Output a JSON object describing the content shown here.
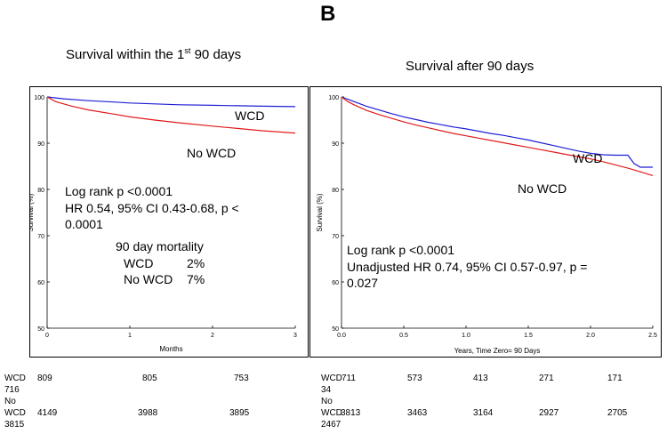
{
  "panel_letter": "B",
  "chart_data": [
    {
      "type": "line",
      "title": "Survival within the 1st 90 days",
      "title_main": "Survival within the 1",
      "title_sup": "st",
      "title_rest": " 90 days",
      "xlabel": "Months",
      "ylabel": "Survival (%)",
      "xlim": [
        0,
        3
      ],
      "ylim": [
        50,
        100
      ],
      "xticks": [
        0,
        1,
        2,
        3
      ],
      "yticks": [
        50,
        60,
        70,
        80,
        90,
        100
      ],
      "xtick_labels": [
        "0",
        "1",
        "2",
        "3"
      ],
      "ytick_labels": [
        "50",
        "60",
        "70",
        "80",
        "90",
        "100"
      ],
      "series": [
        {
          "name": "WCD",
          "color": "#1f1fd6",
          "x": [
            0,
            0.2,
            0.5,
            0.8,
            1.0,
            1.3,
            1.6,
            2.0,
            2.3,
            2.6,
            3.0
          ],
          "y": [
            100,
            99.6,
            99.2,
            98.9,
            98.7,
            98.5,
            98.3,
            98.2,
            98.1,
            98.0,
            97.9
          ]
        },
        {
          "name": "No WCD",
          "color": "#e01b1b",
          "x": [
            0,
            0.1,
            0.3,
            0.5,
            0.8,
            1.0,
            1.3,
            1.6,
            2.0,
            2.3,
            2.6,
            3.0
          ],
          "y": [
            100,
            99.0,
            98.0,
            97.2,
            96.3,
            95.7,
            95.0,
            94.4,
            93.7,
            93.2,
            92.7,
            92.2
          ]
        }
      ],
      "annotations": {
        "wcd_label": "WCD",
        "nowcd_label": "No WCD",
        "logrank": "Log rank p <0.0001",
        "hr_line1": "HR 0.54, 95% CI 0.43-0.68, p <",
        "hr_line2": "0.0001",
        "mortality_title": "90 day mortality",
        "mort_wcd_label": "WCD",
        "mort_wcd_value": "2%",
        "mort_nowcd_label": "No WCD",
        "mort_nowcd_value": "7%"
      },
      "risk_table": {
        "row1_label_a": "WCD",
        "row1_label_b": "716",
        "row1_values": [
          "809",
          "805",
          "753"
        ],
        "row2_label_a": "No",
        "row2_label_b": "WCD",
        "row2_label_c": "3815",
        "row2_values": [
          "4149",
          "3988",
          "3895"
        ]
      }
    },
    {
      "type": "line",
      "title": "Survival after 90 days",
      "xlabel": "Years, Time Zero= 90 Days",
      "ylabel": "Survival (%)",
      "xlim": [
        0,
        2.5
      ],
      "ylim": [
        50,
        100
      ],
      "xticks": [
        0,
        0.5,
        1.0,
        1.5,
        2.0,
        2.5
      ],
      "yticks": [
        50,
        60,
        70,
        80,
        90,
        100
      ],
      "xtick_labels": [
        "0.0",
        "0.5",
        "1.0",
        "1.5",
        "2.0",
        "2.5"
      ],
      "ytick_labels": [
        "50",
        "60",
        "70",
        "80",
        "90",
        "100"
      ],
      "series": [
        {
          "name": "WCD",
          "color": "#1f1fd6",
          "x": [
            0,
            0.05,
            0.1,
            0.2,
            0.3,
            0.4,
            0.5,
            0.6,
            0.7,
            0.8,
            0.9,
            1.0,
            1.1,
            1.2,
            1.3,
            1.4,
            1.5,
            1.6,
            1.7,
            1.8,
            1.9,
            2.0,
            2.1,
            2.2,
            2.3,
            2.35,
            2.4,
            2.5
          ],
          "y": [
            100,
            99.5,
            99.0,
            98.0,
            97.2,
            96.4,
            95.7,
            95.1,
            94.5,
            94.0,
            93.5,
            93.1,
            92.6,
            92.1,
            91.7,
            91.2,
            90.7,
            90.1,
            89.5,
            88.9,
            88.3,
            87.8,
            87.5,
            87.4,
            87.4,
            85.6,
            84.8,
            84.8
          ]
        },
        {
          "name": "No WCD",
          "color": "#e01b1b",
          "x": [
            0,
            0.05,
            0.1,
            0.2,
            0.3,
            0.4,
            0.5,
            0.6,
            0.7,
            0.8,
            0.9,
            1.0,
            1.1,
            1.2,
            1.3,
            1.4,
            1.5,
            1.6,
            1.7,
            1.8,
            1.9,
            2.0,
            2.1,
            2.2,
            2.3,
            2.4,
            2.5
          ],
          "y": [
            100,
            99.0,
            98.3,
            97.1,
            96.2,
            95.4,
            94.6,
            93.9,
            93.3,
            92.7,
            92.1,
            91.6,
            91.1,
            90.6,
            90.1,
            89.6,
            89.1,
            88.6,
            88.1,
            87.6,
            87.1,
            86.6,
            86.0,
            85.3,
            84.6,
            83.8,
            83.0
          ]
        }
      ],
      "annotations": {
        "wcd_label": "WCD",
        "nowcd_label": "No WCD",
        "logrank": "Log rank p <0.0001",
        "hr_line1": "Unadjusted HR 0.74, 95% CI 0.57-0.97, p =",
        "hr_line2": "0.027"
      },
      "risk_table": {
        "row1_label_a": "WCD",
        "row1_label_b": "34",
        "row1_values": [
          "711",
          "573",
          "413",
          "271",
          "171"
        ],
        "row2_label_a": "No",
        "row2_label_b": "WCD",
        "row2_label_c": "2467",
        "row2_values": [
          "3813",
          "3463",
          "3164",
          "2927",
          "2705"
        ]
      }
    }
  ]
}
